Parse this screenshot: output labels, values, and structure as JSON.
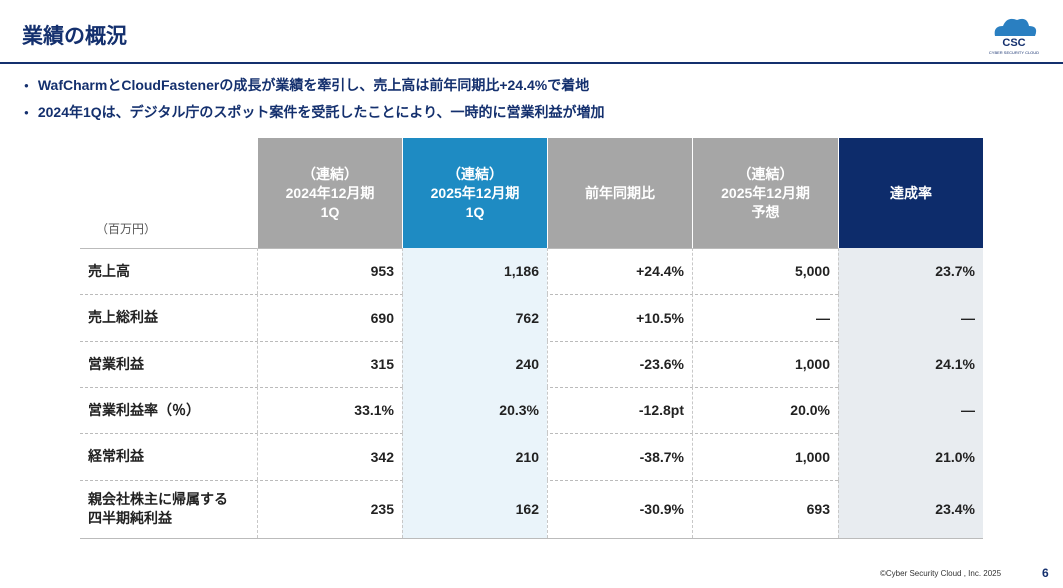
{
  "header": {
    "title": "業績の概況",
    "logo": {
      "mark": "CSC",
      "name": "CYBER SECURITY CLOUD"
    }
  },
  "bullets": [
    "WafCharmとCloudFastenerの成長が業績を牽引し、売上高は前年同期比+24.4%で着地",
    "2024年1Qは、デジタル庁のスポット案件を受託したことにより、一時的に営業利益が増加"
  ],
  "table": {
    "unit": "（百万円）",
    "columns": [
      [
        "（連結）",
        "2024年12月期",
        "1Q"
      ],
      [
        "（連結）",
        "2025年12月期",
        "1Q"
      ],
      [
        "前年同期比"
      ],
      [
        "（連結）",
        "2025年12月期",
        "予想"
      ],
      [
        "達成率"
      ]
    ],
    "rows": [
      {
        "label": [
          "売上高"
        ],
        "cells": [
          "953",
          "1,186",
          "+24.4%",
          "5,000",
          "23.7%"
        ]
      },
      {
        "label": [
          "売上総利益"
        ],
        "cells": [
          "690",
          "762",
          "+10.5%",
          "—",
          "—"
        ]
      },
      {
        "label": [
          "営業利益"
        ],
        "cells": [
          "315",
          "240",
          "-23.6%",
          "1,000",
          "24.1%"
        ]
      },
      {
        "label": [
          "営業利益率（％）"
        ],
        "cells": [
          "33.1%",
          "20.3%",
          "-12.8pt",
          "20.0%",
          "—"
        ]
      },
      {
        "label": [
          "経常利益"
        ],
        "cells": [
          "342",
          "210",
          "-38.7%",
          "1,000",
          "21.0%"
        ]
      },
      {
        "label": [
          "親会社株主に帰属する",
          "四半期純利益"
        ],
        "cells": [
          "235",
          "162",
          "-30.9%",
          "693",
          "23.4%"
        ]
      }
    ]
  },
  "footer": {
    "copyright": "©Cyber Security Cloud , Inc. 2025",
    "page": "6"
  }
}
